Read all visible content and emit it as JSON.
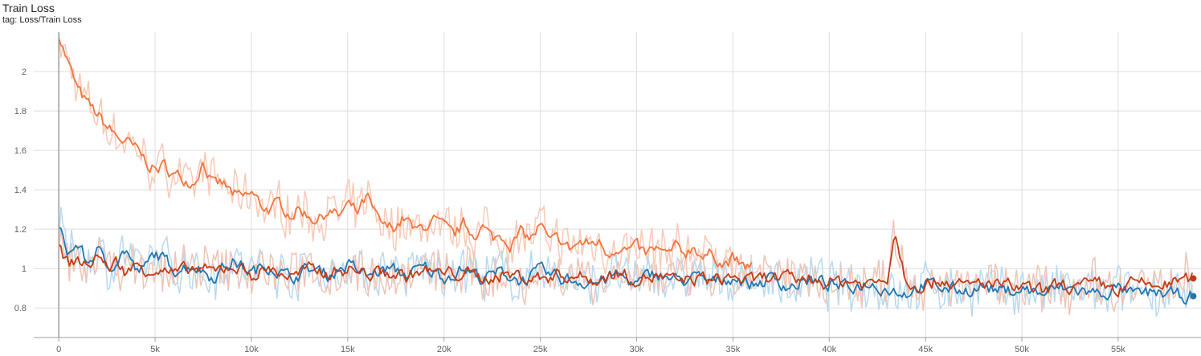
{
  "header": {
    "title": "Train Loss",
    "tag": "tag: Loss/Train Loss"
  },
  "chart_data": {
    "type": "line",
    "title": "Train Loss",
    "xlabel": "",
    "ylabel": "",
    "xlim": [
      -1300,
      59300
    ],
    "ylim": [
      0.65,
      2.2
    ],
    "grid": true,
    "x_ticks": [
      0,
      5000,
      10000,
      15000,
      20000,
      25000,
      30000,
      35000,
      40000,
      45000,
      50000,
      55000
    ],
    "x_tick_labels": [
      "0",
      "5k",
      "10k",
      "15k",
      "20k",
      "25k",
      "30k",
      "35k",
      "40k",
      "45k",
      "50k",
      "55k"
    ],
    "y_ticks": [
      0.8,
      1,
      1.2,
      1.4,
      1.6,
      1.8,
      2
    ],
    "y_tick_labels": [
      "0.8",
      "1",
      "1.2",
      "1.4",
      "1.6",
      "1.8",
      "2"
    ],
    "series": [
      {
        "color": "#f4733c",
        "raw_color": "#f9c9b6",
        "x": [
          0,
          300,
          700,
          1000,
          1500,
          2000,
          2500,
          3000,
          3500,
          4000,
          4500,
          5000,
          5500,
          6000,
          6500,
          7000,
          7500,
          8000,
          8500,
          9000,
          9500,
          10000,
          10500,
          11000,
          11500,
          12000,
          12500,
          13000,
          13500,
          14000,
          14500,
          15000,
          15500,
          16000,
          16500,
          17000,
          17500,
          18000,
          18500,
          19000,
          19500,
          20000,
          20500,
          21000,
          21500,
          22000,
          22500,
          23000,
          23500,
          24000,
          24500,
          25000,
          25500,
          26000,
          26500,
          27000,
          27500,
          28000,
          28500,
          29000,
          29500,
          30000,
          30500,
          31000,
          31500,
          32000,
          32500,
          33000,
          33500,
          34000,
          34500,
          35000,
          35500,
          36000
        ],
        "y": [
          2.2,
          2.1,
          1.98,
          1.9,
          1.83,
          1.78,
          1.72,
          1.67,
          1.64,
          1.6,
          1.55,
          1.5,
          1.52,
          1.47,
          1.46,
          1.44,
          1.55,
          1.42,
          1.43,
          1.38,
          1.35,
          1.38,
          1.32,
          1.3,
          1.33,
          1.28,
          1.3,
          1.27,
          1.25,
          1.3,
          1.26,
          1.32,
          1.28,
          1.36,
          1.25,
          1.2,
          1.22,
          1.26,
          1.18,
          1.22,
          1.24,
          1.2,
          1.16,
          1.22,
          1.18,
          1.21,
          1.15,
          1.17,
          1.13,
          1.18,
          1.15,
          1.22,
          1.12,
          1.15,
          1.1,
          1.13,
          1.12,
          1.14,
          1.08,
          1.12,
          1.09,
          1.1,
          1.07,
          1.1,
          1.06,
          1.1,
          1.08,
          1.12,
          1.05,
          1.08,
          1.02,
          1.05,
          1.0,
          1.02
        ]
      },
      {
        "color": "#1f77b4",
        "raw_color": "#b9d9ef",
        "x": [
          0,
          500,
          1000,
          1500,
          2000,
          2500,
          3000,
          3500,
          4000,
          4500,
          5000,
          6000,
          7000,
          8000,
          9000,
          10000,
          11000,
          12000,
          13000,
          14000,
          15000,
          16000,
          17000,
          18000,
          19000,
          20000,
          21000,
          22000,
          23000,
          24000,
          25000,
          26000,
          27000,
          28000,
          29000,
          30000,
          31000,
          32000,
          33000,
          34000,
          35000,
          36000,
          37000,
          38000,
          39000,
          40000,
          41000,
          42000,
          43000,
          44000,
          45000,
          46000,
          47000,
          48000,
          49000,
          50000,
          51000,
          52000,
          53000,
          54000,
          55000,
          56000,
          57000,
          58000,
          58900
        ],
        "y": [
          1.2,
          1.08,
          1.12,
          1.02,
          1.1,
          1.0,
          1.05,
          1.1,
          0.98,
          1.0,
          1.08,
          1.0,
          1.02,
          0.96,
          1.04,
          0.98,
          1.02,
          0.95,
          1.0,
          0.97,
          1.02,
          0.96,
          1.0,
          0.97,
          1.0,
          0.96,
          1.0,
          0.95,
          0.98,
          0.94,
          0.98,
          0.95,
          0.94,
          0.93,
          0.97,
          0.92,
          0.98,
          0.94,
          0.95,
          0.93,
          0.96,
          0.92,
          0.95,
          0.91,
          0.94,
          0.92,
          0.9,
          0.93,
          0.9,
          0.88,
          0.92,
          0.9,
          0.89,
          0.91,
          0.88,
          0.9,
          0.87,
          0.9,
          0.89,
          0.87,
          0.9,
          0.86,
          0.88,
          0.86,
          0.86
        ]
      },
      {
        "color": "#c23b14",
        "raw_color": "#eec4b6",
        "x": [
          0,
          500,
          1000,
          1500,
          2000,
          2500,
          3000,
          3500,
          4000,
          4500,
          5000,
          6000,
          7000,
          8000,
          9000,
          10000,
          11000,
          12000,
          13000,
          14000,
          15000,
          16000,
          17000,
          18000,
          19000,
          20000,
          21000,
          22000,
          23000,
          24000,
          25000,
          26000,
          27000,
          28000,
          29000,
          30000,
          31000,
          32000,
          33000,
          34000,
          35000,
          36000,
          37000,
          38000,
          39000,
          40000,
          41000,
          42000,
          43000,
          43400,
          44000,
          45000,
          46000,
          47000,
          48000,
          49000,
          50000,
          51000,
          52000,
          53000,
          54000,
          55000,
          56000,
          57000,
          58000,
          58900
        ],
        "y": [
          1.1,
          1.02,
          1.05,
          1.0,
          1.08,
          1.0,
          1.03,
          0.98,
          1.02,
          1.0,
          1.0,
          0.97,
          1.0,
          0.98,
          1.02,
          0.97,
          1.0,
          0.96,
          0.99,
          0.98,
          1.0,
          0.97,
          0.98,
          0.96,
          0.99,
          0.97,
          0.98,
          0.95,
          0.97,
          0.96,
          0.95,
          0.97,
          0.96,
          0.94,
          0.98,
          0.95,
          0.96,
          0.93,
          0.95,
          0.94,
          0.96,
          0.93,
          0.96,
          0.94,
          0.95,
          0.93,
          0.94,
          0.92,
          0.95,
          1.2,
          0.94,
          0.92,
          0.95,
          0.9,
          0.93,
          0.91,
          0.9,
          0.88,
          0.92,
          0.9,
          0.92,
          0.89,
          0.93,
          0.91,
          0.93,
          0.95
        ]
      }
    ]
  }
}
